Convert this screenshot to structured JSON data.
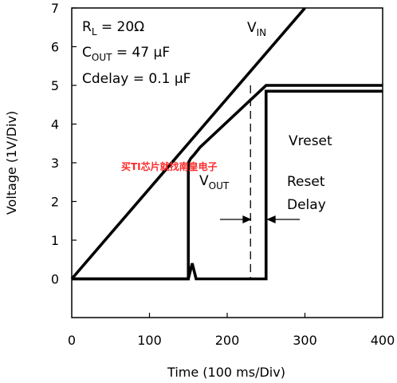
{
  "chart_data": {
    "type": "line",
    "xlabel": "Time (100 ms/Div)",
    "ylabel": "Voltage (1V/Div)",
    "xlim": [
      0,
      400
    ],
    "ylim": [
      -1,
      7
    ],
    "x_ticks": [
      "0",
      "100",
      "200",
      "300",
      "400"
    ],
    "y_ticks": [
      "0",
      "1",
      "2",
      "3",
      "4",
      "5",
      "6",
      "7"
    ],
    "grid": false,
    "series": [
      {
        "name": "VIN",
        "x": [
          0,
          300
        ],
        "y": [
          0,
          7
        ]
      },
      {
        "name": "VOUT",
        "x": [
          0,
          150,
          150,
          153,
          157,
          161,
          165,
          250,
          400
        ],
        "y": [
          0,
          0,
          3,
          3.11,
          3.2,
          3.3,
          3.4,
          5,
          5
        ]
      },
      {
        "name": "Vreset",
        "x": [
          0,
          150,
          155,
          160,
          165,
          250,
          250,
          400
        ],
        "y": [
          0,
          0,
          0.4,
          0,
          0,
          0,
          4.85,
          4.85
        ]
      }
    ],
    "annotations": {
      "conditions": [
        {
          "label": "R",
          "sub": "L",
          "value": " = 20Ω"
        },
        {
          "label": "C",
          "sub": "OUT",
          "value": " = 47 μF"
        },
        {
          "label": "Cdelay",
          "sub": "",
          "value": " = 0.1 μF"
        }
      ],
      "vin_label": "V",
      "vin_sub": "IN",
      "vout_label": "V",
      "vout_sub": "OUT",
      "vreset_label": "Vreset",
      "reset_delay_line1": "Reset",
      "reset_delay_line2": "Delay",
      "delay_marker_x": 230
    },
    "watermark": "买TI芯片就找南皇电子",
    "colors": {
      "trace": "#000000",
      "watermark": "#ff2a2a",
      "background": "#ffffff"
    }
  }
}
